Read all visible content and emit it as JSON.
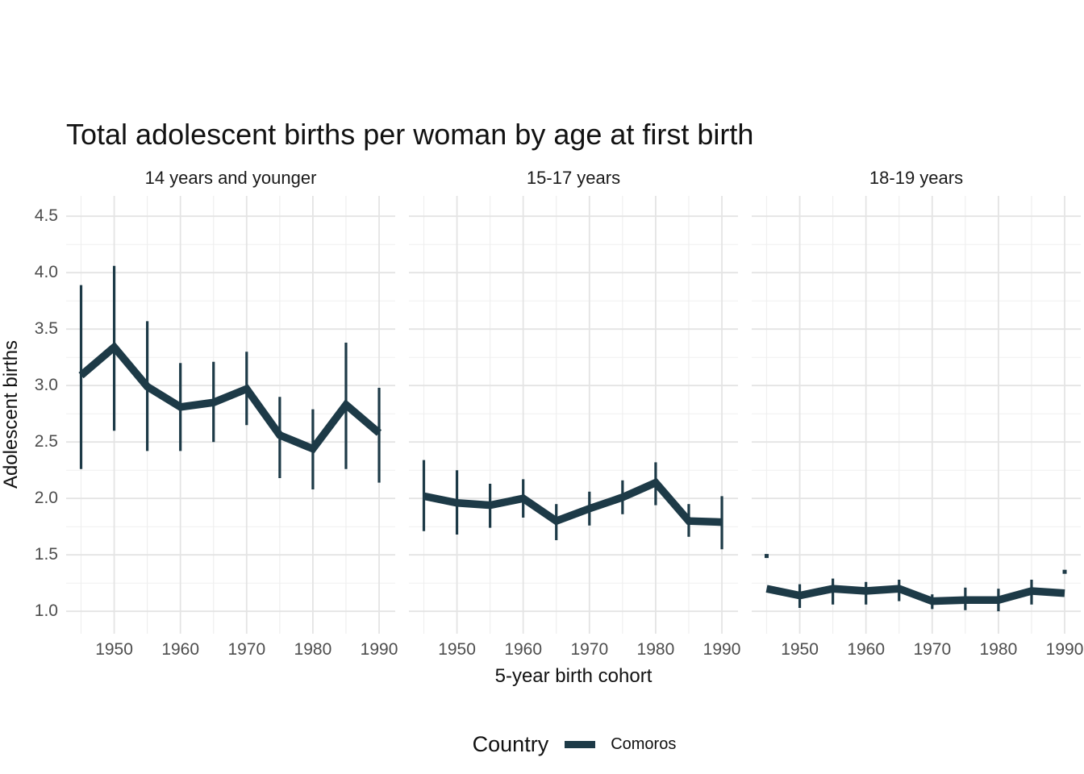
{
  "title": "Total adolescent births per woman by age at first birth",
  "y_axis": {
    "label": "Adolescent births",
    "tick_labels": [
      "1.0",
      "1.5",
      "2.0",
      "2.5",
      "3.0",
      "3.5",
      "4.0",
      "4.5"
    ],
    "tick_values": [
      1.0,
      1.5,
      2.0,
      2.5,
      3.0,
      3.5,
      4.0,
      4.5
    ]
  },
  "x_axis": {
    "label": "5-year birth cohort",
    "tick_labels": [
      "1950",
      "1960",
      "1970",
      "1980",
      "1990"
    ],
    "tick_values": [
      1950,
      1960,
      1970,
      1980,
      1990
    ]
  },
  "legend": {
    "title": "Country",
    "series_label": "Comoros"
  },
  "colors": {
    "series": "#1d3a47",
    "grid_major": "#e4e4e4",
    "grid_minor": "#efefef",
    "tick_text": "#4d4d4d",
    "title_text": "#111111"
  },
  "chart_data": {
    "type": "line",
    "title": "Total adolescent births per woman by age at first birth",
    "xlabel": "5-year birth cohort",
    "ylabel": "Adolescent births",
    "series_name": "Comoros",
    "x_domain": [
      1942.75,
      1992.25
    ],
    "y_domain": [
      0.8,
      4.68
    ],
    "x_ticks": [
      1950,
      1960,
      1970,
      1980,
      1990
    ],
    "x_minor_ticks": [
      1945,
      1955,
      1965,
      1975,
      1985
    ],
    "y_ticks": [
      1.0,
      1.5,
      2.0,
      2.5,
      3.0,
      3.5,
      4.0,
      4.5
    ],
    "y_minor_ticks": [
      1.25,
      1.75,
      2.25,
      2.75,
      3.25,
      3.75,
      4.25
    ],
    "grid": true,
    "legend_position": "bottom",
    "facets": [
      {
        "name": "14 years and younger",
        "points": [
          {
            "x": 1945,
            "y": 3.09,
            "lo": 2.26,
            "hi": 3.89
          },
          {
            "x": 1950,
            "y": 3.34,
            "lo": 2.6,
            "hi": 4.06
          },
          {
            "x": 1955,
            "y": 2.99,
            "lo": 2.42,
            "hi": 3.57
          },
          {
            "x": 1960,
            "y": 2.81,
            "lo": 2.42,
            "hi": 3.2
          },
          {
            "x": 1965,
            "y": 2.85,
            "lo": 2.5,
            "hi": 3.21
          },
          {
            "x": 1970,
            "y": 2.97,
            "lo": 2.65,
            "hi": 3.3
          },
          {
            "x": 1975,
            "y": 2.56,
            "lo": 2.18,
            "hi": 2.9
          },
          {
            "x": 1980,
            "y": 2.44,
            "lo": 2.08,
            "hi": 2.79
          },
          {
            "x": 1985,
            "y": 2.83,
            "lo": 2.26,
            "hi": 3.38
          },
          {
            "x": 1990,
            "y": 2.58,
            "lo": 2.14,
            "hi": 2.98
          }
        ]
      },
      {
        "name": "15-17 years",
        "points": [
          {
            "x": 1945,
            "y": 2.02,
            "lo": 1.71,
            "hi": 2.34
          },
          {
            "x": 1950,
            "y": 1.96,
            "lo": 1.68,
            "hi": 2.25
          },
          {
            "x": 1955,
            "y": 1.94,
            "lo": 1.74,
            "hi": 2.13
          },
          {
            "x": 1960,
            "y": 2.0,
            "lo": 1.83,
            "hi": 2.17
          },
          {
            "x": 1965,
            "y": 1.8,
            "lo": 1.63,
            "hi": 1.95
          },
          {
            "x": 1970,
            "y": 1.91,
            "lo": 1.76,
            "hi": 2.06
          },
          {
            "x": 1975,
            "y": 2.01,
            "lo": 1.86,
            "hi": 2.16
          },
          {
            "x": 1980,
            "y": 2.14,
            "lo": 1.94,
            "hi": 2.32
          },
          {
            "x": 1985,
            "y": 1.8,
            "lo": 1.66,
            "hi": 1.95
          },
          {
            "x": 1990,
            "y": 1.79,
            "lo": 1.55,
            "hi": 2.02
          }
        ]
      },
      {
        "name": "18-19 years",
        "points": [
          {
            "x": 1945,
            "y": 1.2,
            "dot": 1.49
          },
          {
            "x": 1950,
            "y": 1.14,
            "lo": 1.03,
            "hi": 1.24
          },
          {
            "x": 1955,
            "y": 1.2,
            "lo": 1.06,
            "hi": 1.29
          },
          {
            "x": 1960,
            "y": 1.18,
            "lo": 1.06,
            "hi": 1.26
          },
          {
            "x": 1965,
            "y": 1.2,
            "lo": 1.09,
            "hi": 1.28
          },
          {
            "x": 1970,
            "y": 1.09,
            "lo": 1.02,
            "hi": 1.15
          },
          {
            "x": 1975,
            "y": 1.1,
            "lo": 1.01,
            "hi": 1.21
          },
          {
            "x": 1980,
            "y": 1.1,
            "lo": 1.0,
            "hi": 1.2
          },
          {
            "x": 1985,
            "y": 1.18,
            "lo": 1.06,
            "hi": 1.28
          },
          {
            "x": 1990,
            "y": 1.16,
            "dot": 1.35
          }
        ]
      }
    ]
  }
}
